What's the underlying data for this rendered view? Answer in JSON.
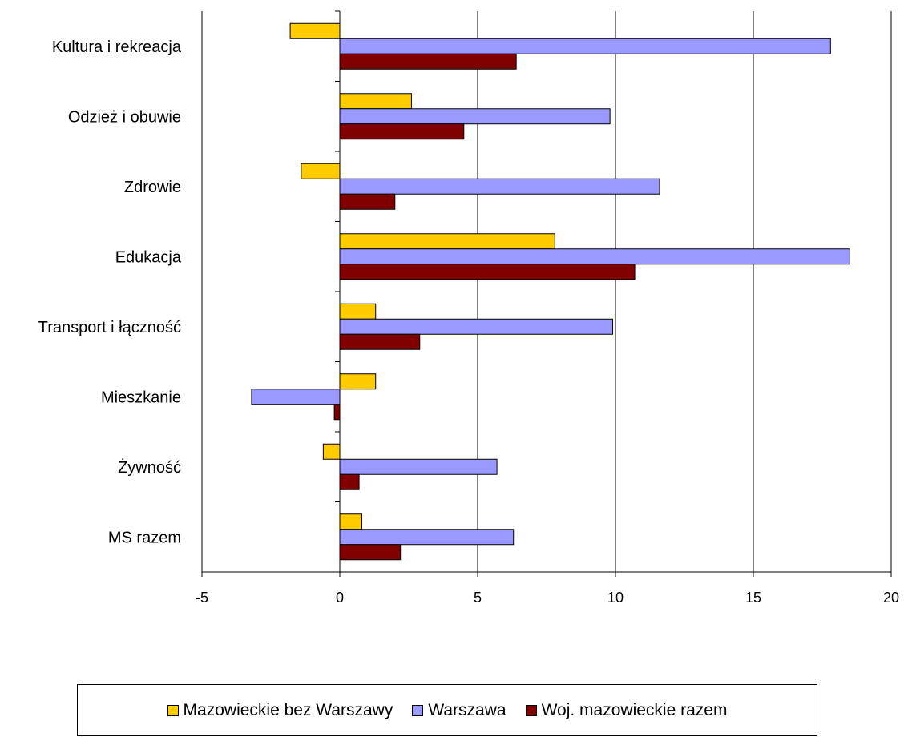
{
  "chart_data": {
    "type": "bar",
    "orientation": "horizontal",
    "categories": [
      "Kultura i rekreacja",
      "Odzież i obuwie",
      "Zdrowie",
      "Edukacja",
      "Transport i łączność",
      "Mieszkanie",
      "Żywność",
      "MS razem"
    ],
    "series": [
      {
        "name": "Mazowieckie bez Warszawy",
        "color": "#FFCC00",
        "values": [
          -1.8,
          2.6,
          -1.4,
          7.8,
          1.3,
          1.3,
          -0.6,
          0.8
        ]
      },
      {
        "name": "Warszawa",
        "color": "#9999FF",
        "values": [
          17.8,
          9.8,
          11.6,
          18.5,
          9.9,
          -3.2,
          5.7,
          6.3
        ]
      },
      {
        "name": "Woj. mazowieckie razem",
        "color": "#800000",
        "values": [
          6.4,
          4.5,
          2.0,
          10.7,
          2.9,
          -0.2,
          0.7,
          2.2
        ]
      }
    ],
    "xlim": [
      -5,
      20
    ],
    "xticks": [
      -5,
      0,
      5,
      10,
      15,
      20
    ],
    "xtick_labels": [
      "-5",
      "0",
      "5",
      "10",
      "15",
      "20"
    ],
    "grid": "vertical",
    "legend_position": "bottom",
    "title": "",
    "xlabel": "",
    "ylabel": ""
  }
}
